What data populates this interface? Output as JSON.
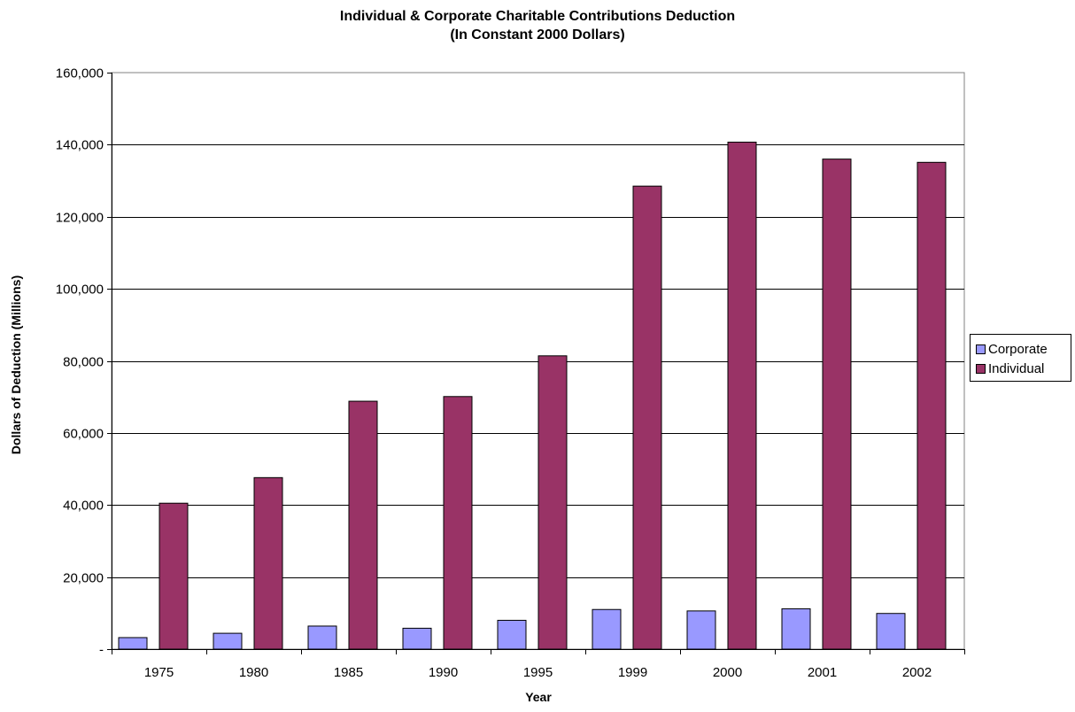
{
  "chart_data": {
    "type": "bar",
    "title": "Individual & Corporate Charitable Contributions Deduction",
    "subtitle": "(In Constant 2000 Dollars)",
    "xlabel": "Year",
    "ylabel": "Dollars of Deduction (Millions)",
    "categories": [
      "1975",
      "1980",
      "1985",
      "1990",
      "1995",
      "1999",
      "2000",
      "2001",
      "2002"
    ],
    "series": [
      {
        "name": "Corporate",
        "color": "#9999ff",
        "values": [
          3200,
          4400,
          6400,
          5800,
          8000,
          11000,
          10600,
          11200,
          9900
        ]
      },
      {
        "name": "Individual",
        "color": "#993366",
        "values": [
          40500,
          47600,
          68800,
          70100,
          81400,
          128500,
          140700,
          136000,
          135100
        ]
      }
    ],
    "ylim": [
      0,
      160000
    ],
    "yticks": [
      0,
      20000,
      40000,
      60000,
      80000,
      100000,
      120000,
      140000,
      160000
    ],
    "ytick_labels": [
      "-",
      "20,000",
      "40,000",
      "60,000",
      "80,000",
      "100,000",
      "120,000",
      "140,000",
      "160,000"
    ],
    "grid": true,
    "legend_position": "right"
  }
}
